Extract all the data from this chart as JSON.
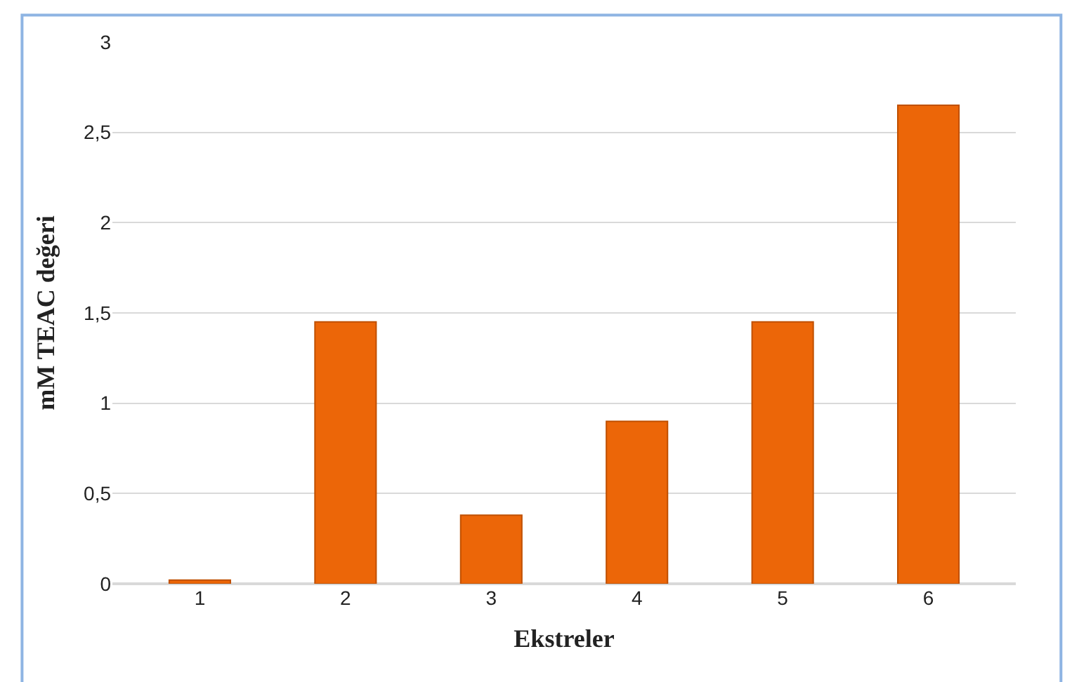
{
  "chart_data": {
    "type": "bar",
    "xlabel": "Ekstreler",
    "ylabel": "mM TEAC değeri",
    "categories": [
      "1",
      "2",
      "3",
      "4",
      "5",
      "6"
    ],
    "values": [
      0.02,
      1.45,
      0.38,
      0.9,
      1.45,
      2.65
    ],
    "color": "#ec6608",
    "ylim": [
      0,
      3
    ],
    "yticks": [
      0,
      {
        "value": 0.5,
        "label": "0,5"
      },
      1,
      {
        "value": 1.5,
        "label": "1,5"
      },
      2,
      {
        "value": 2.5,
        "label": "2,5"
      },
      3
    ],
    "grid": "y"
  }
}
